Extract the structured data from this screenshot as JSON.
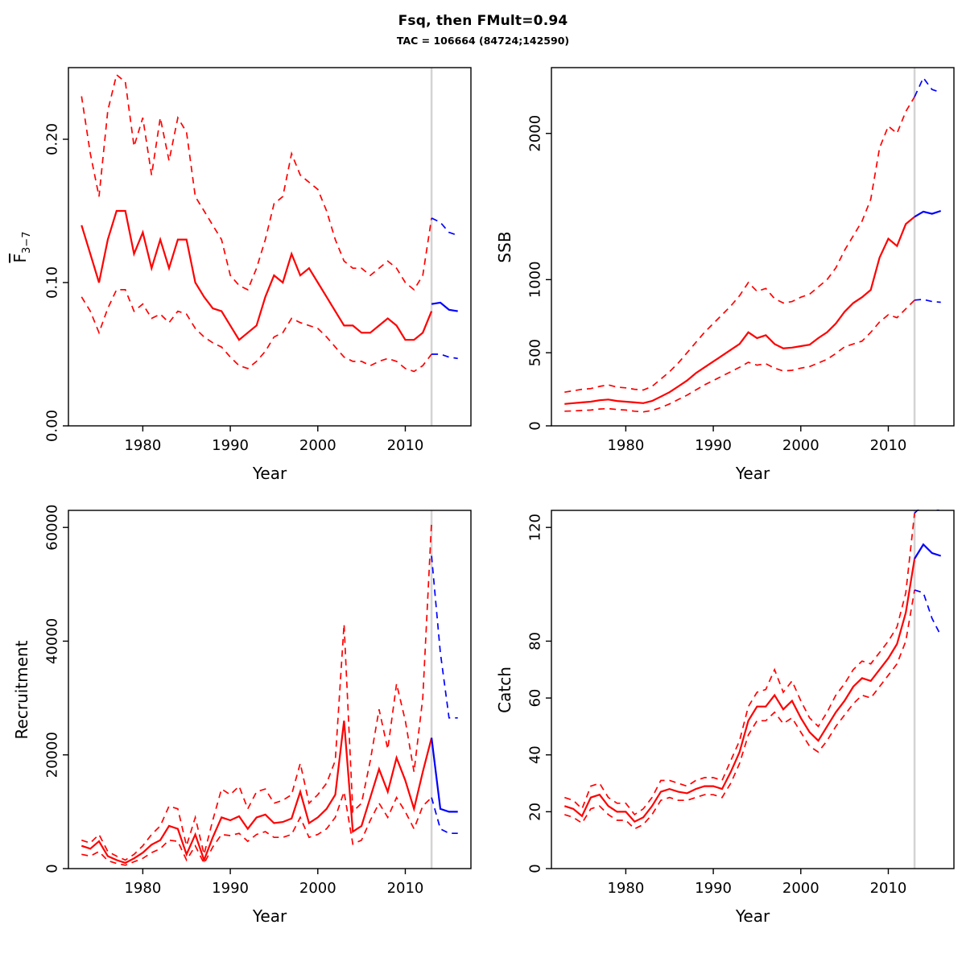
{
  "title": "Fsq, then FMult=0.94",
  "subtitle": "TAC = 106664 (84724;142590)",
  "colors": {
    "red": "#FF0000",
    "blue": "#0000FF",
    "gray": "#D3D3D3",
    "axis": "#000000",
    "background": "#FFFFFF"
  },
  "chart_data": [
    {
      "type": "line",
      "name": "fbar",
      "ylabel_main": "F",
      "ylabel_sub": "3−7",
      "xlabel": "Year",
      "xlim": [
        1971.5,
        2017.5
      ],
      "ylim": [
        0,
        0.25
      ],
      "xticks": {
        "values": [
          1980,
          1990,
          2000,
          2010
        ],
        "labels": [
          "1980",
          "1990",
          "2000",
          "2010"
        ]
      },
      "yticks": {
        "values": [
          0,
          0.1,
          0.2
        ],
        "labels": [
          "0.00",
          "0.10",
          "0.20"
        ]
      },
      "now_line_x": 2013,
      "series": [
        {
          "name": "upper-ci",
          "color": "red",
          "dashed": true,
          "x0": 1973,
          "values": [
            0.23,
            0.19,
            0.16,
            0.22,
            0.245,
            0.24,
            0.195,
            0.215,
            0.175,
            0.215,
            0.185,
            0.215,
            0.205,
            0.16,
            0.15,
            0.14,
            0.13,
            0.105,
            0.098,
            0.095,
            0.11,
            0.13,
            0.155,
            0.16,
            0.19,
            0.175,
            0.17,
            0.165,
            0.15,
            0.13,
            0.115,
            0.11,
            0.11,
            0.105,
            0.11,
            0.115,
            0.11,
            0.1,
            0.095,
            0.105,
            0.145
          ]
        },
        {
          "name": "median",
          "color": "red",
          "dashed": false,
          "x0": 1973,
          "values": [
            0.14,
            0.12,
            0.1,
            0.13,
            0.15,
            0.15,
            0.12,
            0.135,
            0.11,
            0.13,
            0.11,
            0.13,
            0.13,
            0.1,
            0.09,
            0.082,
            0.08,
            0.07,
            0.06,
            0.065,
            0.07,
            0.09,
            0.105,
            0.1,
            0.12,
            0.105,
            0.11,
            0.1,
            0.09,
            0.08,
            0.07,
            0.07,
            0.065,
            0.065,
            0.07,
            0.075,
            0.07,
            0.06,
            0.06,
            0.065,
            0.08
          ]
        },
        {
          "name": "lower-ci",
          "color": "red",
          "dashed": true,
          "x0": 1973,
          "values": [
            0.09,
            0.08,
            0.065,
            0.082,
            0.095,
            0.095,
            0.08,
            0.085,
            0.075,
            0.078,
            0.072,
            0.08,
            0.078,
            0.068,
            0.062,
            0.058,
            0.055,
            0.048,
            0.042,
            0.04,
            0.045,
            0.052,
            0.062,
            0.065,
            0.075,
            0.072,
            0.07,
            0.068,
            0.062,
            0.055,
            0.048,
            0.045,
            0.045,
            0.042,
            0.045,
            0.047,
            0.045,
            0.04,
            0.038,
            0.042,
            0.05
          ]
        },
        {
          "name": "forecast-upper",
          "color": "blue",
          "dashed": true,
          "x0": 2013,
          "values": [
            0.145,
            0.142,
            0.135,
            0.133
          ]
        },
        {
          "name": "forecast-median",
          "color": "blue",
          "dashed": false,
          "x0": 2013,
          "values": [
            0.085,
            0.086,
            0.081,
            0.08
          ]
        },
        {
          "name": "forecast-lower",
          "color": "blue",
          "dashed": true,
          "x0": 2013,
          "values": [
            0.05,
            0.05,
            0.048,
            0.047
          ]
        }
      ]
    },
    {
      "type": "line",
      "name": "ssb",
      "ylabel": "SSB",
      "xlabel": "Year",
      "xlim": [
        1971.5,
        2017.5
      ],
      "ylim": [
        0,
        2450
      ],
      "xticks": {
        "values": [
          1980,
          1990,
          2000,
          2010
        ],
        "labels": [
          "1980",
          "1990",
          "2000",
          "2010"
        ]
      },
      "yticks": {
        "values": [
          0,
          500,
          1000,
          2000
        ],
        "labels": [
          "0",
          "500",
          "1000",
          "2000"
        ]
      },
      "now_line_x": 2013,
      "series": [
        {
          "name": "upper-ci",
          "color": "red",
          "dashed": true,
          "x0": 1973,
          "values": [
            230,
            240,
            250,
            255,
            270,
            280,
            265,
            260,
            250,
            245,
            270,
            320,
            370,
            430,
            500,
            570,
            640,
            700,
            760,
            820,
            890,
            980,
            920,
            940,
            870,
            840,
            850,
            880,
            900,
            950,
            1000,
            1080,
            1200,
            1300,
            1400,
            1550,
            1900,
            2050,
            2000,
            2150,
            2250
          ]
        },
        {
          "name": "median",
          "color": "red",
          "dashed": false,
          "x0": 1973,
          "values": [
            150,
            155,
            160,
            165,
            175,
            180,
            170,
            165,
            160,
            155,
            170,
            200,
            230,
            270,
            310,
            360,
            400,
            440,
            480,
            520,
            560,
            640,
            600,
            620,
            560,
            530,
            535,
            545,
            555,
            600,
            640,
            700,
            780,
            840,
            880,
            930,
            1150,
            1280,
            1230,
            1380,
            1430
          ]
        },
        {
          "name": "lower-ci",
          "color": "red",
          "dashed": true,
          "x0": 1973,
          "values": [
            100,
            102,
            105,
            108,
            115,
            118,
            112,
            108,
            100,
            95,
            105,
            125,
            150,
            180,
            210,
            245,
            280,
            310,
            340,
            370,
            400,
            435,
            415,
            425,
            395,
            375,
            380,
            395,
            405,
            430,
            455,
            495,
            540,
            560,
            580,
            640,
            710,
            760,
            740,
            800,
            860
          ]
        },
        {
          "name": "forecast-upper",
          "color": "blue",
          "dashed": true,
          "x0": 2013,
          "values": [
            2250,
            2380,
            2300,
            2280
          ]
        },
        {
          "name": "forecast-median",
          "color": "blue",
          "dashed": false,
          "x0": 2013,
          "values": [
            1430,
            1465,
            1450,
            1470
          ]
        },
        {
          "name": "forecast-lower",
          "color": "blue",
          "dashed": true,
          "x0": 2013,
          "values": [
            860,
            865,
            850,
            845
          ]
        }
      ]
    },
    {
      "type": "line",
      "name": "recruitment",
      "ylabel": "Recruitment",
      "xlabel": "Year",
      "xlim": [
        1971.5,
        2017.5
      ],
      "ylim": [
        0,
        63000
      ],
      "xticks": {
        "values": [
          1980,
          1990,
          2000,
          2010
        ],
        "labels": [
          "1980",
          "1990",
          "2000",
          "2010"
        ]
      },
      "yticks": {
        "values": [
          0,
          20000,
          40000,
          60000
        ],
        "labels": [
          "0",
          "20000",
          "40000",
          "60000"
        ]
      },
      "now_line_x": 2013,
      "series": [
        {
          "name": "upper-ci",
          "color": "red",
          "dashed": true,
          "x0": 1973,
          "values": [
            5000,
            4500,
            6000,
            3000,
            2200,
            1500,
            2500,
            4000,
            6000,
            7500,
            11000,
            10500,
            4000,
            9000,
            2500,
            8500,
            14000,
            13000,
            14500,
            10500,
            13500,
            14000,
            11500,
            12000,
            13000,
            18500,
            11500,
            13000,
            15000,
            19000,
            43000,
            10000,
            11500,
            19000,
            28000,
            21000,
            32500,
            26000,
            17000,
            30000,
            61000
          ]
        },
        {
          "name": "median",
          "color": "red",
          "dashed": false,
          "x0": 1973,
          "values": [
            4000,
            3500,
            4800,
            2200,
            1500,
            1000,
            1800,
            2800,
            4200,
            5000,
            7500,
            7000,
            2500,
            6000,
            1500,
            5500,
            9000,
            8500,
            9200,
            7000,
            9000,
            9500,
            8000,
            8200,
            8800,
            13500,
            8000,
            9000,
            10500,
            13000,
            26000,
            6500,
            7500,
            12500,
            17500,
            13500,
            19500,
            15500,
            10500,
            17000,
            23000
          ]
        },
        {
          "name": "lower-ci",
          "color": "red",
          "dashed": true,
          "x0": 1973,
          "values": [
            2500,
            2200,
            3000,
            1400,
            900,
            600,
            1200,
            1800,
            2800,
            3500,
            5000,
            4800,
            1500,
            4000,
            900,
            3800,
            6000,
            5800,
            6200,
            4800,
            6000,
            6500,
            5500,
            5500,
            6000,
            9000,
            5500,
            6000,
            7000,
            9000,
            13500,
            4300,
            5000,
            8500,
            11500,
            9000,
            12500,
            10000,
            7000,
            11000,
            12500
          ]
        },
        {
          "name": "forecast-upper",
          "color": "blue",
          "dashed": true,
          "x0": 2013,
          "values": [
            55000,
            38000,
            26500,
            26500
          ]
        },
        {
          "name": "forecast-median",
          "color": "blue",
          "dashed": false,
          "x0": 2013,
          "values": [
            23000,
            10500,
            10000,
            10000
          ]
        },
        {
          "name": "forecast-lower",
          "color": "blue",
          "dashed": true,
          "x0": 2013,
          "values": [
            12500,
            7000,
            6200,
            6200
          ]
        }
      ]
    },
    {
      "type": "line",
      "name": "catch",
      "ylabel": "Catch",
      "xlabel": "Year",
      "xlim": [
        1971.5,
        2017.5
      ],
      "ylim": [
        0,
        126
      ],
      "xticks": {
        "values": [
          1980,
          1990,
          2000,
          2010
        ],
        "labels": [
          "1980",
          "1990",
          "2000",
          "2010"
        ]
      },
      "yticks": {
        "values": [
          0,
          20,
          40,
          60,
          80,
          120
        ],
        "labels": [
          "0",
          "20",
          "40",
          "60",
          "80",
          "120"
        ]
      },
      "now_line_x": 2013,
      "series": [
        {
          "name": "upper-ci",
          "color": "red",
          "dashed": true,
          "x0": 1973,
          "values": [
            25,
            24,
            21,
            29,
            30,
            25,
            23,
            23,
            19,
            21,
            25,
            31,
            31,
            30,
            29,
            31,
            32,
            32,
            31,
            38,
            45,
            57,
            62,
            63,
            70,
            62,
            66,
            59,
            53,
            50,
            55,
            61,
            65,
            70,
            73,
            72,
            76,
            80,
            85,
            97,
            125
          ]
        },
        {
          "name": "median",
          "color": "red",
          "dashed": false,
          "x0": 1973,
          "values": [
            22,
            21,
            18.5,
            25,
            26,
            22,
            20,
            20,
            16.5,
            18,
            22,
            27,
            28,
            27,
            26.5,
            28,
            29,
            29,
            28,
            34,
            41,
            52,
            57,
            57,
            61,
            56,
            59,
            53,
            48,
            45,
            50,
            55,
            59,
            64,
            67,
            66,
            70,
            74,
            79,
            90,
            109
          ]
        },
        {
          "name": "lower-ci",
          "color": "red",
          "dashed": true,
          "x0": 1973,
          "values": [
            19,
            18,
            16,
            21,
            22,
            19,
            17,
            17,
            14,
            15.5,
            19,
            24,
            25,
            24,
            24,
            25,
            26,
            26,
            25,
            30,
            37,
            47,
            52,
            52,
            55,
            51,
            53,
            48,
            43,
            41,
            45,
            50,
            54,
            58,
            61,
            60,
            64,
            68,
            72,
            80,
            98
          ]
        },
        {
          "name": "forecast-upper",
          "color": "blue",
          "dashed": true,
          "x0": 2013,
          "values": [
            125,
            128,
            127,
            126
          ]
        },
        {
          "name": "forecast-median",
          "color": "blue",
          "dashed": false,
          "x0": 2013,
          "values": [
            109,
            114,
            111,
            110
          ]
        },
        {
          "name": "forecast-lower",
          "color": "blue",
          "dashed": true,
          "x0": 2013,
          "values": [
            98,
            97,
            88,
            82
          ]
        }
      ]
    }
  ]
}
